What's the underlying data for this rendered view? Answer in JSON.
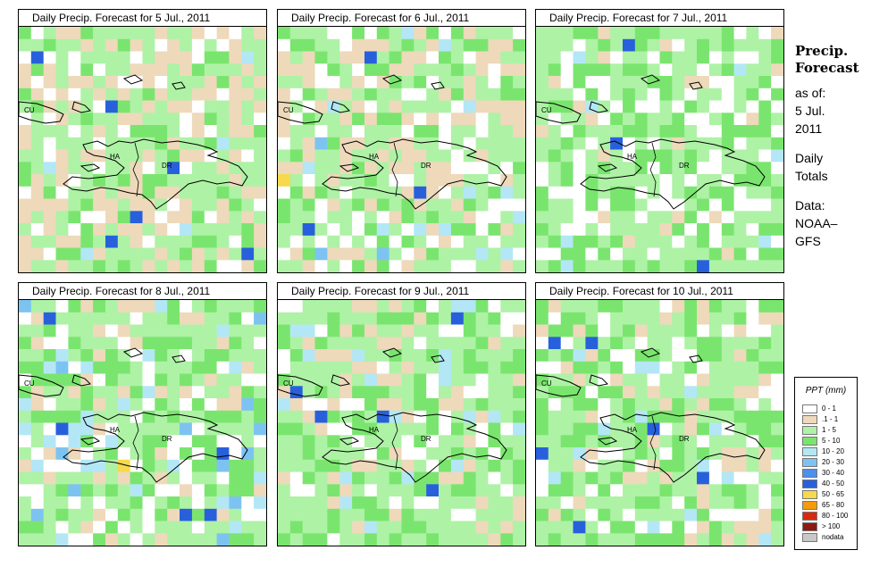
{
  "panels": [
    {
      "title": "Daily Precip. Forecast for  5 Jul., 2011",
      "seed": 11,
      "bias": [
        0.12,
        0.3,
        0.42,
        0.13,
        0.03,
        0.0
      ]
    },
    {
      "title": "Daily Precip. Forecast for  6 Jul., 2011",
      "seed": 23,
      "bias": [
        0.18,
        0.22,
        0.4,
        0.15,
        0.04,
        0.01
      ]
    },
    {
      "title": "Daily Precip. Forecast for  7 Jul., 2011",
      "seed": 37,
      "bias": [
        0.22,
        0.06,
        0.44,
        0.25,
        0.03,
        0.0
      ]
    },
    {
      "title": "Daily Precip. Forecast for  8 Jul., 2011",
      "seed": 41,
      "bias": [
        0.2,
        0.12,
        0.38,
        0.2,
        0.08,
        0.02
      ]
    },
    {
      "title": "Daily Precip. Forecast for  9 Jul., 2011",
      "seed": 53,
      "bias": [
        0.14,
        0.12,
        0.44,
        0.26,
        0.04,
        0.0
      ]
    },
    {
      "title": "Daily Precip. Forecast for  10 Jul., 2011",
      "seed": 67,
      "bias": [
        0.14,
        0.12,
        0.44,
        0.26,
        0.04,
        0.0
      ]
    }
  ],
  "map_labels": {
    "cuba": "CU",
    "haiti": "HA",
    "dr": "DR"
  },
  "sidebar": {
    "title_line1": "Precip.",
    "title_line2": "Forecast",
    "asof_line1": "as of:",
    "asof_line2": "5 Jul.",
    "asof_line3": "2011",
    "daily_line1": "Daily",
    "daily_line2": "Totals",
    "data_line1": "Data:",
    "data_line2": "NOAA–",
    "data_line3": "GFS"
  },
  "legend": {
    "title": "PPT (mm)",
    "items": [
      {
        "label": "0 - 1",
        "color": "#ffffff"
      },
      {
        "label": ".1 - 1",
        "color": "#eed9bb"
      },
      {
        "label": "1 - 5",
        "color": "#aef2a6"
      },
      {
        "label": "5 - 10",
        "color": "#7ae56e"
      },
      {
        "label": "10 - 20",
        "color": "#b3e7f5"
      },
      {
        "label": "20 - 30",
        "color": "#7dc3f2"
      },
      {
        "label": "30 - 40",
        "color": "#4b90ec"
      },
      {
        "label": "40 - 50",
        "color": "#2860dc"
      },
      {
        "label": "50 - 65",
        "color": "#f6d94c"
      },
      {
        "label": "65 - 80",
        "color": "#f59a0a"
      },
      {
        "label": "80 - 100",
        "color": "#d92a0f"
      },
      {
        "label": "> 100",
        "color": "#8b1a10"
      },
      {
        "label": "nodata",
        "color": "#c8c8c8"
      }
    ]
  },
  "grid_classes": [
    "#ffffff",
    "#eed9bb",
    "#aef2a6",
    "#7ae56e",
    "#b3e7f5",
    "#7dc3f2",
    "#4b90ec",
    "#2860dc",
    "#f6d94c"
  ]
}
